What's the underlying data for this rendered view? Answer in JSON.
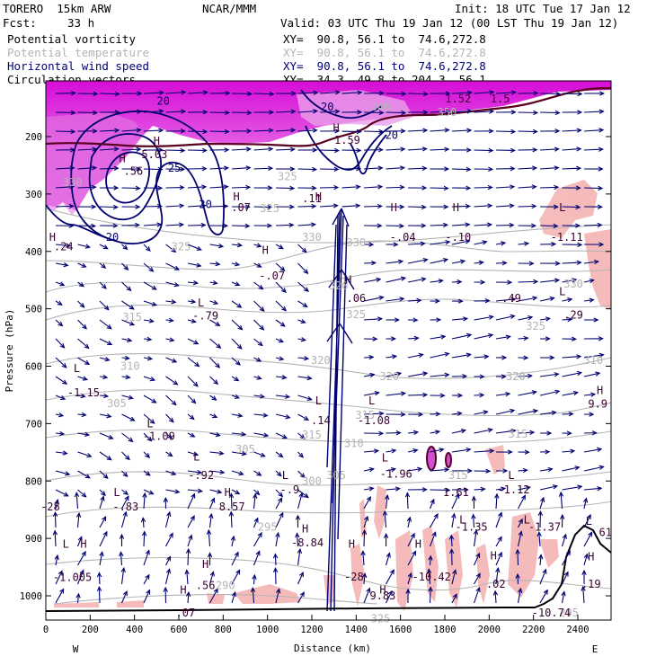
{
  "header": {
    "model": "TORERO  15km ARW",
    "center": "NCAR/MMM",
    "init": "Init: 18 UTC Tue 17 Jan 12",
    "fcst_label": "Fcst:",
    "fcst_value": "33 h",
    "valid": "Valid: 03 UTC Thu 19 Jan 12 (00 LST Thu 19 Jan 12)"
  },
  "fields": [
    {
      "name": "Potential vorticity",
      "xy": "XY=  90.8, 56.1 to  74.6,272.8",
      "color": "#000000"
    },
    {
      "name": "Potential temperature",
      "xy": "XY=  90.8, 56.1 to  74.6,272.8",
      "color": "#b4b4b4"
    },
    {
      "name": "Horizontal wind speed",
      "xy": "XY=  90.8, 56.1 to  74.6,272.8",
      "color": "#00007a"
    },
    {
      "name": "Circulation vectors",
      "xy": "XY=  34.3, 49.8 to 204.3, 56.1",
      "color": "#000000"
    }
  ],
  "colors": {
    "magenta": "#e000e0",
    "pink": "#f5b4b4",
    "theta": "#b4b4b4",
    "wind": "#000070",
    "pv": "#5a0020",
    "vectors": "#000070"
  },
  "chart_data": {
    "type": "cross-section",
    "xlabel": "Distance (km)",
    "ylabel": "Pressure (hPa)",
    "xlim": [
      0,
      2550
    ],
    "ylim": [
      1050,
      100
    ],
    "xticks": [
      "0",
      "200",
      "400",
      "600",
      "800",
      "1000",
      "1200",
      "1400",
      "1600",
      "1800",
      "2000",
      "2200",
      "2400"
    ],
    "yticks": [
      "200",
      "300",
      "400",
      "500",
      "600",
      "700",
      "800",
      "900",
      "1000"
    ],
    "end_left": "W",
    "end_right": "E",
    "theta_labels": [
      {
        "text": "325",
        "x": 1010,
        "y": 325
      },
      {
        "text": "325",
        "x": 610,
        "y": 392
      },
      {
        "text": "330",
        "x": 1200,
        "y": 375
      },
      {
        "text": "330",
        "x": 1400,
        "y": 385
      },
      {
        "text": "320",
        "x": 1320,
        "y": 460
      },
      {
        "text": "325",
        "x": 1400,
        "y": 510
      },
      {
        "text": "315",
        "x": 390,
        "y": 515
      },
      {
        "text": "310",
        "x": 380,
        "y": 600
      },
      {
        "text": "305",
        "x": 320,
        "y": 665
      },
      {
        "text": "320",
        "x": 1240,
        "y": 590
      },
      {
        "text": "320",
        "x": 1550,
        "y": 618
      },
      {
        "text": "320",
        "x": 2120,
        "y": 618
      },
      {
        "text": "315",
        "x": 1440,
        "y": 685
      },
      {
        "text": "315",
        "x": 1200,
        "y": 720
      },
      {
        "text": "315",
        "x": 2130,
        "y": 718
      },
      {
        "text": "310",
        "x": 1390,
        "y": 735
      },
      {
        "text": "305",
        "x": 900,
        "y": 745
      },
      {
        "text": "300",
        "x": 1200,
        "y": 800
      },
      {
        "text": "305",
        "x": 1310,
        "y": 790
      },
      {
        "text": "295",
        "x": 1000,
        "y": 880
      },
      {
        "text": "290",
        "x": 810,
        "y": 982
      },
      {
        "text": "330",
        "x": 2380,
        "y": 457
      },
      {
        "text": "325",
        "x": 2210,
        "y": 530
      },
      {
        "text": "310",
        "x": 2470,
        "y": 590
      },
      {
        "text": "320",
        "x": 2120,
        "y": 618
      },
      {
        "text": "315",
        "x": 1860,
        "y": 790
      },
      {
        "text": "295",
        "x": 2360,
        "y": 1030
      },
      {
        "text": "340",
        "x": 1510,
        "y": 148
      },
      {
        "text": "350",
        "x": 1810,
        "y": 158
      },
      {
        "text": "325",
        "x": 1090,
        "y": 270
      },
      {
        "text": "330",
        "x": 120,
        "y": 280
      },
      {
        "text": "325",
        "x": 1510,
        "y": 1040
      }
    ],
    "wind_labels": [
      {
        "text": "20",
        "x": 530,
        "y": 138
      },
      {
        "text": "20",
        "x": 1270,
        "y": 148
      },
      {
        "text": "20",
        "x": 1560,
        "y": 198
      },
      {
        "text": "25",
        "x": 580,
        "y": 255
      },
      {
        "text": "20",
        "x": 720,
        "y": 318
      },
      {
        "text": "20",
        "x": 300,
        "y": 375
      }
    ],
    "hl_markers": [
      {
        "text": "H",
        "x": 500,
        "y": 208,
        "type": "H"
      },
      {
        "text": "5.03",
        "x": 490,
        "y": 231,
        "type": "value"
      },
      {
        "text": "H",
        "x": 345,
        "y": 238,
        "type": "H"
      },
      {
        "text": ".56",
        "x": 395,
        "y": 260,
        "type": "value"
      },
      {
        "text": "H",
        "x": 1310,
        "y": 185,
        "type": "H"
      },
      {
        "text": "1.59",
        "x": 1360,
        "y": 206,
        "type": "value"
      },
      {
        "text": "1.52",
        "x": 1860,
        "y": 134,
        "type": "value"
      },
      {
        "text": "1.5",
        "x": 2050,
        "y": 134,
        "type": "value"
      },
      {
        "text": "H",
        "x": 860,
        "y": 305,
        "type": "H"
      },
      {
        "text": ".07",
        "x": 880,
        "y": 324,
        "type": "value"
      },
      {
        "text": "H",
        "x": 1230,
        "y": 305,
        "type": "H"
      },
      {
        "text": ".11",
        "x": 1200,
        "y": 308,
        "type": "value"
      },
      {
        "text": "H",
        "x": 30,
        "y": 375,
        "type": "H"
      },
      {
        "text": ".24",
        "x": 80,
        "y": 392,
        "type": "value"
      },
      {
        "text": "H",
        "x": 1570,
        "y": 324,
        "type": "H"
      },
      {
        "text": "-.04",
        "x": 1610,
        "y": 375,
        "type": "value"
      },
      {
        "text": "H",
        "x": 1850,
        "y": 324,
        "type": "H"
      },
      {
        "text": "-.10",
        "x": 1860,
        "y": 375,
        "type": "value"
      },
      {
        "text": "L",
        "x": 2330,
        "y": 324,
        "type": "L"
      },
      {
        "text": "-1.11",
        "x": 2350,
        "y": 375,
        "type": "value"
      },
      {
        "text": "H",
        "x": 990,
        "y": 398,
        "type": "H"
      },
      {
        "text": "-.07",
        "x": 1020,
        "y": 443,
        "type": "value"
      },
      {
        "text": "H",
        "x": 1365,
        "y": 450,
        "type": "H"
      },
      {
        "text": ".06",
        "x": 1400,
        "y": 482,
        "type": "value"
      },
      {
        "text": ".49",
        "x": 2100,
        "y": 482,
        "type": "value"
      },
      {
        "text": "L",
        "x": 2330,
        "y": 470,
        "type": "L"
      },
      {
        "text": ".29",
        "x": 2380,
        "y": 511,
        "type": "value"
      },
      {
        "text": "L",
        "x": 700,
        "y": 490,
        "type": "L"
      },
      {
        "text": "-.79",
        "x": 720,
        "y": 512,
        "type": "value"
      },
      {
        "text": "L",
        "x": 140,
        "y": 604,
        "type": "L"
      },
      {
        "text": "-1.15",
        "x": 170,
        "y": 646,
        "type": "value"
      },
      {
        "text": "L",
        "x": 1230,
        "y": 660,
        "type": "L"
      },
      {
        "text": ".14",
        "x": 1240,
        "y": 695,
        "type": "value"
      },
      {
        "text": "L",
        "x": 1470,
        "y": 660,
        "type": "L"
      },
      {
        "text": "-1.08",
        "x": 1480,
        "y": 695,
        "type": "value"
      },
      {
        "text": "H",
        "x": 2500,
        "y": 642,
        "type": "H"
      },
      {
        "text": "9.9",
        "x": 2490,
        "y": 666,
        "type": "value"
      },
      {
        "text": "L",
        "x": 470,
        "y": 700,
        "type": "L"
      },
      {
        "text": "-1.09",
        "x": 510,
        "y": 722,
        "type": "value"
      },
      {
        "text": "L",
        "x": 1530,
        "y": 760,
        "type": "L"
      },
      {
        "text": "-1.96",
        "x": 1580,
        "y": 788,
        "type": "value"
      },
      {
        "text": "L",
        "x": 680,
        "y": 758,
        "type": "L"
      },
      {
        "text": "-.92",
        "x": 700,
        "y": 790,
        "type": "value"
      },
      {
        "text": "L",
        "x": 1080,
        "y": 790,
        "type": "L"
      },
      {
        "text": "-.9",
        "x": 1100,
        "y": 815,
        "type": "value"
      },
      {
        "text": "L",
        "x": 2100,
        "y": 790,
        "type": "L"
      },
      {
        "text": "L",
        "x": 320,
        "y": 820,
        "type": "L"
      },
      {
        "text": "-.83",
        "x": 360,
        "y": 845,
        "type": "value"
      },
      {
        "text": "H",
        "x": 820,
        "y": 820,
        "type": "H"
      },
      {
        "text": "8.57",
        "x": 840,
        "y": 845,
        "type": "value"
      },
      {
        "text": "1.61",
        "x": 1850,
        "y": 820,
        "type": "value"
      },
      {
        "text": "-1.12",
        "x": 2110,
        "y": 815,
        "type": "value"
      },
      {
        "text": "-28",
        "x": 20,
        "y": 845,
        "type": "value"
      },
      {
        "text": "L",
        "x": 1880,
        "y": 868,
        "type": "L"
      },
      {
        "text": "-1.35",
        "x": 1920,
        "y": 880,
        "type": "value"
      },
      {
        "text": "L",
        "x": 2170,
        "y": 868,
        "type": "L"
      },
      {
        "text": "-1.37",
        "x": 2250,
        "y": 880,
        "type": "value"
      },
      {
        "text": "L",
        "x": 2450,
        "y": 870,
        "type": "L"
      },
      {
        "text": "H",
        "x": 1170,
        "y": 883,
        "type": "H"
      },
      {
        "text": "-8.84",
        "x": 1180,
        "y": 908,
        "type": "value"
      },
      {
        "text": "H",
        "x": 1380,
        "y": 910,
        "type": "H"
      },
      {
        "text": "-28",
        "x": 1390,
        "y": 967,
        "type": "value"
      },
      {
        "text": "H",
        "x": 1680,
        "y": 910,
        "type": "H"
      },
      {
        "text": "-10.42",
        "x": 1740,
        "y": 967,
        "type": "value"
      },
      {
        "text": "H",
        "x": 2020,
        "y": 930,
        "type": "H"
      },
      {
        "text": ".02",
        "x": 2030,
        "y": 980,
        "type": "value"
      },
      {
        "text": "H",
        "x": 2460,
        "y": 932,
        "type": "H"
      },
      {
        "text": ".19",
        "x": 2460,
        "y": 980,
        "type": "value"
      },
      {
        "text": ".61",
        "x": 2510,
        "y": 890,
        "type": "value"
      },
      {
        "text": "L",
        "x": 90,
        "y": 910,
        "type": "L"
      },
      {
        "text": "H",
        "x": 170,
        "y": 910,
        "type": "H"
      },
      {
        "text": "-1.005",
        "x": 120,
        "y": 968,
        "type": "value"
      },
      {
        "text": "H",
        "x": 720,
        "y": 945,
        "type": "H"
      },
      {
        "text": ".56",
        "x": 720,
        "y": 982,
        "type": "value"
      },
      {
        "text": "H",
        "x": 620,
        "y": 990,
        "type": "H"
      },
      {
        "text": ".07",
        "x": 630,
        "y": 1030,
        "type": "value"
      },
      {
        "text": "H",
        "x": 1520,
        "y": 990,
        "type": "H"
      },
      {
        "text": "9.83",
        "x": 1520,
        "y": 1000,
        "type": "value"
      },
      {
        "text": "-10.74",
        "x": 2280,
        "y": 1030,
        "type": "value"
      }
    ]
  }
}
